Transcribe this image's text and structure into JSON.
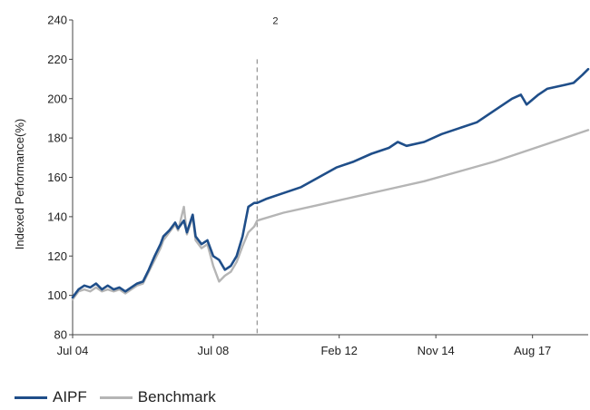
{
  "chart_data": {
    "type": "line",
    "title": "",
    "xlabel": "",
    "ylabel": "Indexed Performance(%)",
    "ylim": [
      80,
      240
    ],
    "xlim": [
      "2004-07",
      "2019-03"
    ],
    "yticks": [
      "80",
      "100",
      "120",
      "140",
      "160",
      "180",
      "200",
      "220",
      "240"
    ],
    "xticks": [
      {
        "label": "Jul 04",
        "date": "2004-07"
      },
      {
        "label": "Jul 08",
        "date": "2008-07"
      },
      {
        "label": "Feb 12",
        "date": "2012-02"
      },
      {
        "label": "Nov 14",
        "date": "2014-11"
      },
      {
        "label": "Aug 17",
        "date": "2017-08"
      }
    ],
    "grid": false,
    "legend_position": "bottom-left",
    "annotations": [
      {
        "type": "vertical-dashed-line",
        "x": "2009-10",
        "label": "2"
      }
    ],
    "series": [
      {
        "name": "AIPF",
        "color": "#1f4e89",
        "points": [
          [
            "2004-07",
            99
          ],
          [
            "2004-09",
            103
          ],
          [
            "2004-11",
            105
          ],
          [
            "2005-01",
            104
          ],
          [
            "2005-03",
            106
          ],
          [
            "2005-05",
            103
          ],
          [
            "2005-07",
            105
          ],
          [
            "2005-09",
            103
          ],
          [
            "2005-11",
            104
          ],
          [
            "2006-01",
            102
          ],
          [
            "2006-03",
            104
          ],
          [
            "2006-05",
            106
          ],
          [
            "2006-07",
            107
          ],
          [
            "2006-09",
            113
          ],
          [
            "2006-11",
            120
          ],
          [
            "2007-01",
            126
          ],
          [
            "2007-02",
            130
          ],
          [
            "2007-04",
            133
          ],
          [
            "2007-06",
            137
          ],
          [
            "2007-07",
            134
          ],
          [
            "2007-09",
            138
          ],
          [
            "2007-10",
            132
          ],
          [
            "2007-12",
            141
          ],
          [
            "2008-01",
            130
          ],
          [
            "2008-03",
            126
          ],
          [
            "2008-05",
            128
          ],
          [
            "2008-07",
            120
          ],
          [
            "2008-09",
            118
          ],
          [
            "2008-11",
            113
          ],
          [
            "2009-01",
            115
          ],
          [
            "2009-03",
            120
          ],
          [
            "2009-05",
            130
          ],
          [
            "2009-07",
            145
          ],
          [
            "2009-09",
            147
          ],
          [
            "2009-10",
            147
          ],
          [
            "2010-01",
            149
          ],
          [
            "2010-07",
            152
          ],
          [
            "2011-01",
            155
          ],
          [
            "2011-07",
            160
          ],
          [
            "2012-01",
            165
          ],
          [
            "2012-07",
            168
          ],
          [
            "2013-01",
            172
          ],
          [
            "2013-07",
            175
          ],
          [
            "2013-10",
            178
          ],
          [
            "2014-01",
            176
          ],
          [
            "2014-07",
            178
          ],
          [
            "2015-01",
            182
          ],
          [
            "2015-07",
            185
          ],
          [
            "2016-01",
            188
          ],
          [
            "2016-07",
            194
          ],
          [
            "2017-01",
            200
          ],
          [
            "2017-04",
            202
          ],
          [
            "2017-06",
            197
          ],
          [
            "2017-10",
            202
          ],
          [
            "2018-01",
            205
          ],
          [
            "2018-07",
            207
          ],
          [
            "2018-10",
            208
          ],
          [
            "2019-01",
            212
          ],
          [
            "2019-03",
            215
          ]
        ]
      },
      {
        "name": "Benchmark",
        "color": "#b5b5b5",
        "points": [
          [
            "2004-07",
            98
          ],
          [
            "2004-09",
            102
          ],
          [
            "2004-11",
            103
          ],
          [
            "2005-01",
            102
          ],
          [
            "2005-03",
            104
          ],
          [
            "2005-05",
            102
          ],
          [
            "2005-07",
            103
          ],
          [
            "2005-09",
            102
          ],
          [
            "2005-11",
            103
          ],
          [
            "2006-01",
            101
          ],
          [
            "2006-03",
            103
          ],
          [
            "2006-05",
            105
          ],
          [
            "2006-07",
            106
          ],
          [
            "2006-09",
            112
          ],
          [
            "2006-11",
            118
          ],
          [
            "2007-01",
            124
          ],
          [
            "2007-02",
            128
          ],
          [
            "2007-04",
            132
          ],
          [
            "2007-06",
            136
          ],
          [
            "2007-07",
            133
          ],
          [
            "2007-09",
            145
          ],
          [
            "2007-10",
            131
          ],
          [
            "2007-12",
            140
          ],
          [
            "2008-01",
            128
          ],
          [
            "2008-03",
            124
          ],
          [
            "2008-05",
            126
          ],
          [
            "2008-07",
            115
          ],
          [
            "2008-09",
            107
          ],
          [
            "2008-11",
            110
          ],
          [
            "2009-01",
            112
          ],
          [
            "2009-03",
            117
          ],
          [
            "2009-05",
            125
          ],
          [
            "2009-07",
            132
          ],
          [
            "2009-09",
            135
          ],
          [
            "2009-10",
            138
          ],
          [
            "2010-07",
            142
          ],
          [
            "2011-07",
            146
          ],
          [
            "2012-07",
            150
          ],
          [
            "2013-07",
            154
          ],
          [
            "2014-07",
            158
          ],
          [
            "2015-07",
            163
          ],
          [
            "2016-07",
            168
          ],
          [
            "2017-07",
            174
          ],
          [
            "2018-07",
            180
          ],
          [
            "2019-03",
            184
          ]
        ]
      }
    ]
  }
}
